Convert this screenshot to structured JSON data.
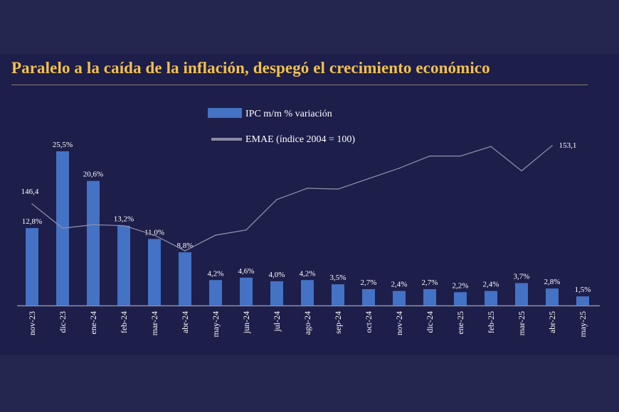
{
  "chart_data": {
    "type": "bar",
    "title": "Paralelo a la caída de la inflación, despegó el crecimiento económico",
    "categories": [
      "nov-23",
      "dic-23",
      "ene-24",
      "feb-24",
      "mar-24",
      "abr-24",
      "may-24",
      "jun-24",
      "jul-24",
      "ago-24",
      "sep-24",
      "oct-24",
      "nov-24",
      "dic-24",
      "ene-25",
      "feb-25",
      "mar-25",
      "abr-25",
      "may-25"
    ],
    "series": [
      {
        "name": "IPC m/m % variación",
        "type": "bar",
        "color": "#4472c4",
        "values": [
          12.8,
          25.5,
          20.6,
          13.2,
          11.0,
          8.8,
          4.2,
          4.6,
          4.0,
          4.2,
          3.5,
          2.7,
          2.4,
          2.7,
          2.2,
          2.4,
          3.7,
          2.8,
          1.5
        ],
        "labels": [
          "12,8%",
          "25,5%",
          "20,6%",
          "13,2%",
          "11,0%",
          "8,8%",
          "4,2%",
          "4,6%",
          "4,0%",
          "4,2%",
          "3,5%",
          "2,7%",
          "2,4%",
          "2,7%",
          "2,2%",
          "2,4%",
          "3,7%",
          "2,8%",
          "1,5%"
        ]
      },
      {
        "name": "EMAE (índice 2004 = 100)",
        "type": "line",
        "color": "#8c8ca6",
        "values": [
          146.4,
          143.6,
          144.0,
          143.9,
          142.8,
          141.0,
          142.8,
          143.4,
          146.9,
          148.2,
          148.1,
          149.3,
          150.5,
          151.9,
          151.9,
          153.0,
          150.2,
          153.1,
          null
        ],
        "point_labels": {
          "0": "146,4",
          "17": "153,1"
        }
      }
    ],
    "legend": "top-center",
    "grid": false,
    "xlabel": "",
    "ylabel": ""
  }
}
